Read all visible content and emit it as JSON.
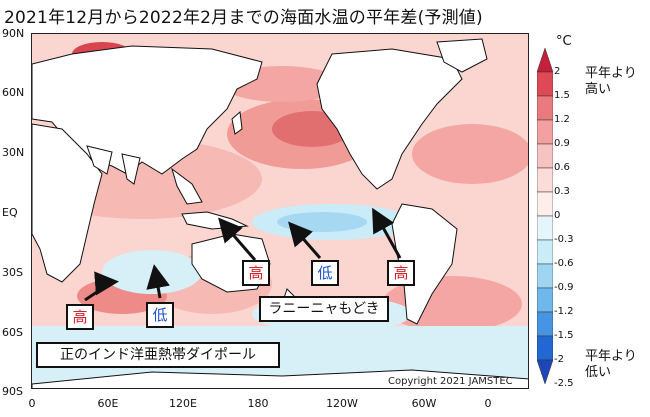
{
  "title": "2021年12月から2022年2月までの海面水温の平年差(予測値)",
  "axes": {
    "lat_ticks": [
      "90N",
      "60N",
      "30N",
      "EQ",
      "30S",
      "60S",
      "90S"
    ],
    "lon_ticks": [
      "0",
      "60E",
      "120E",
      "180",
      "120W",
      "60W",
      "0"
    ]
  },
  "copyright": "Copyright 2021 JAMSTEC",
  "annotations": {
    "high_1": "高",
    "low_1": "低",
    "high_2": "高",
    "low_2": "低",
    "high_3": "高",
    "la_nina": "ラニーニャもどき",
    "iod": "正のインド洋亜熱帯ダイポール"
  },
  "colorbar": {
    "unit": "°C",
    "ticks": [
      "2",
      "1.5",
      "1.2",
      "0.9",
      "0.6",
      "0.3",
      "0",
      "-0.3",
      "-0.6",
      "-0.9",
      "-1.2",
      "-1.5",
      "-2",
      "-2.5"
    ],
    "colors": [
      "#c5203a",
      "#dd4a55",
      "#ea7a7d",
      "#f2a0a0",
      "#f7c3c0",
      "#fbdcd8",
      "#fdeeea",
      "#e4f5fb",
      "#c9ecf8",
      "#9fd5f3",
      "#6fb8ec",
      "#4694e2",
      "#2368d2",
      "#1f46b8"
    ],
    "high_label": "平年より高い",
    "low_label": "平年より低い"
  },
  "colors": {
    "land": "#ffffff",
    "warm_strong": "#d9454e",
    "warm": "#f3a6a3",
    "warm_light": "#fbd6d1",
    "cool_light": "#d7f0f8",
    "cool": "#a6d9f1",
    "high_text": "#d6232b",
    "low_text": "#1f4fd6"
  }
}
